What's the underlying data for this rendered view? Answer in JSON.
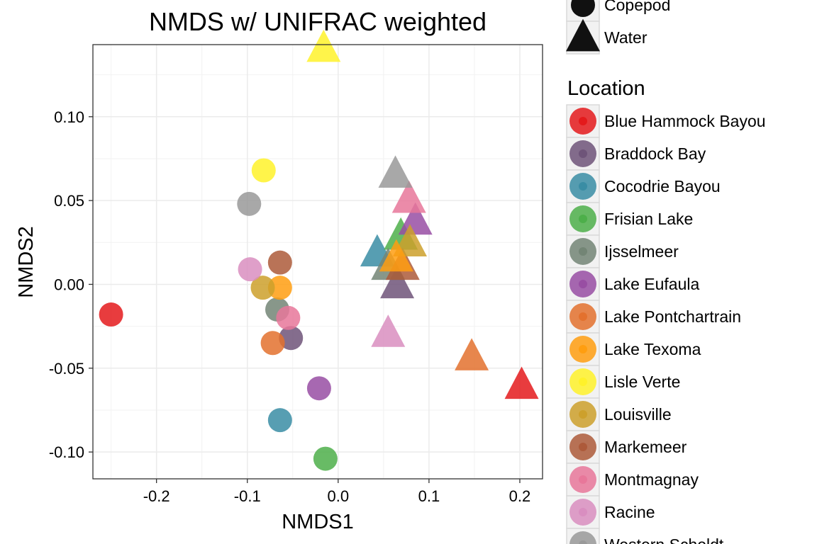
{
  "chart_data": {
    "type": "scatter",
    "title": "NMDS w/ UNIFRAC weighted",
    "xlabel": "NMDS1",
    "ylabel": "NMDS2",
    "xlim": [
      -0.27,
      0.225
    ],
    "ylim": [
      -0.116,
      0.143
    ],
    "x_ticks": [
      -0.2,
      -0.1,
      0.0,
      0.1,
      0.2
    ],
    "x_tick_labels": [
      "-0.2",
      "-0.1",
      "0.0",
      "0.1",
      "0.2"
    ],
    "y_ticks": [
      -0.1,
      -0.05,
      0.0,
      0.05,
      0.1
    ],
    "y_tick_labels": [
      "-0.10",
      "-0.05",
      "0.00",
      "0.05",
      "0.10"
    ],
    "grid": true,
    "legend_position": "right",
    "shape_legend": {
      "title": "",
      "items": [
        {
          "label": "Copepod",
          "shape": "circle"
        },
        {
          "label": "Water",
          "shape": "triangle"
        }
      ]
    },
    "color_legend": {
      "title": "Location",
      "items": [
        {
          "label": "Blue Hammock Bayou",
          "color": "#E41A1C"
        },
        {
          "label": "Braddock Bay",
          "color": "#6E5479"
        },
        {
          "label": "Cocodrie Bayou",
          "color": "#3A8DA4"
        },
        {
          "label": "Frisian Lake",
          "color": "#4DAF4A"
        },
        {
          "label": "Ijsselmeer",
          "color": "#738575"
        },
        {
          "label": "Lake Eufaula",
          "color": "#984EA3"
        },
        {
          "label": "Lake Pontchartrain",
          "color": "#E3712E"
        },
        {
          "label": "Lake Texoma",
          "color": "#FF9E10"
        },
        {
          "label": "Lisle Verte",
          "color": "#FFF22A"
        },
        {
          "label": "Louisville",
          "color": "#CDA02C"
        },
        {
          "label": "Markemeer",
          "color": "#AD5A3A"
        },
        {
          "label": "Montmagnay",
          "color": "#E8779A"
        },
        {
          "label": "Racine",
          "color": "#D98EC0"
        },
        {
          "label": "Western Scheldt",
          "color": "#999999"
        }
      ]
    },
    "points": [
      {
        "x": -0.25,
        "y": -0.018,
        "location": "Blue Hammock Bayou",
        "type": "Copepod"
      },
      {
        "x": -0.052,
        "y": -0.032,
        "location": "Braddock Bay",
        "type": "Copepod"
      },
      {
        "x": -0.064,
        "y": -0.081,
        "location": "Cocodrie Bayou",
        "type": "Copepod"
      },
      {
        "x": -0.014,
        "y": -0.104,
        "location": "Frisian Lake",
        "type": "Copepod"
      },
      {
        "x": -0.067,
        "y": -0.015,
        "location": "Ijsselmeer",
        "type": "Copepod"
      },
      {
        "x": -0.021,
        "y": -0.062,
        "location": "Lake Eufaula",
        "type": "Copepod"
      },
      {
        "x": -0.072,
        "y": -0.035,
        "location": "Lake Pontchartrain",
        "type": "Copepod"
      },
      {
        "x": -0.064,
        "y": -0.002,
        "location": "Lake Texoma",
        "type": "Copepod"
      },
      {
        "x": -0.082,
        "y": 0.068,
        "location": "Lisle Verte",
        "type": "Copepod"
      },
      {
        "x": -0.083,
        "y": -0.002,
        "location": "Louisville",
        "type": "Copepod"
      },
      {
        "x": -0.064,
        "y": 0.013,
        "location": "Markemeer",
        "type": "Copepod"
      },
      {
        "x": -0.055,
        "y": -0.02,
        "location": "Montmagnay",
        "type": "Copepod"
      },
      {
        "x": -0.097,
        "y": 0.009,
        "location": "Racine",
        "type": "Copepod"
      },
      {
        "x": -0.098,
        "y": 0.048,
        "location": "Western Scheldt",
        "type": "Copepod"
      },
      {
        "x": 0.202,
        "y": -0.061,
        "location": "Blue Hammock Bayou",
        "type": "Water"
      },
      {
        "x": 0.065,
        "y": -0.001,
        "location": "Braddock Bay",
        "type": "Water"
      },
      {
        "x": 0.043,
        "y": 0.018,
        "location": "Cocodrie Bayou",
        "type": "Water"
      },
      {
        "x": 0.069,
        "y": 0.028,
        "location": "Frisian Lake",
        "type": "Water"
      },
      {
        "x": 0.055,
        "y": 0.01,
        "location": "Ijsselmeer",
        "type": "Water"
      },
      {
        "x": 0.085,
        "y": 0.037,
        "location": "Lake Eufaula",
        "type": "Water"
      },
      {
        "x": 0.147,
        "y": -0.044,
        "location": "Lake Pontchartrain",
        "type": "Water"
      },
      {
        "x": 0.071,
        "y": 0.01,
        "location": "Markemeer",
        "type": "Water"
      },
      {
        "x": 0.079,
        "y": 0.024,
        "location": "Louisville",
        "type": "Water"
      },
      {
        "x": 0.064,
        "y": 0.015,
        "location": "Lake Texoma",
        "type": "Water"
      },
      {
        "x": -0.016,
        "y": 0.14,
        "location": "Lisle Verte",
        "type": "Water"
      },
      {
        "x": 0.078,
        "y": 0.05,
        "location": "Montmagnay",
        "type": "Water"
      },
      {
        "x": 0.055,
        "y": -0.03,
        "location": "Racine",
        "type": "Water"
      },
      {
        "x": 0.063,
        "y": 0.065,
        "location": "Western Scheldt",
        "type": "Water"
      }
    ]
  }
}
